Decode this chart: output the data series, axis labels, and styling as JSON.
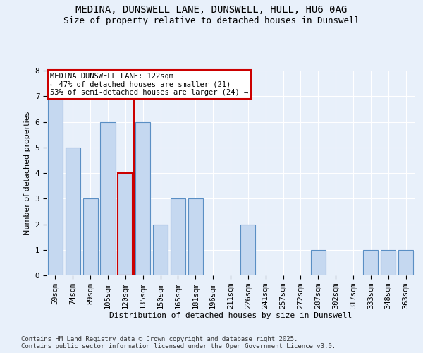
{
  "title": "MEDINA, DUNSWELL LANE, DUNSWELL, HULL, HU6 0AG",
  "subtitle": "Size of property relative to detached houses in Dunswell",
  "xlabel": "Distribution of detached houses by size in Dunswell",
  "ylabel": "Number of detached properties",
  "categories": [
    "59sqm",
    "74sqm",
    "89sqm",
    "105sqm",
    "120sqm",
    "135sqm",
    "150sqm",
    "165sqm",
    "181sqm",
    "196sqm",
    "211sqm",
    "226sqm",
    "241sqm",
    "257sqm",
    "272sqm",
    "287sqm",
    "302sqm",
    "317sqm",
    "333sqm",
    "348sqm",
    "363sqm"
  ],
  "values": [
    7,
    5,
    3,
    6,
    4,
    6,
    2,
    3,
    3,
    0,
    0,
    2,
    0,
    0,
    0,
    1,
    0,
    0,
    1,
    1,
    1
  ],
  "bar_color": "#c5d8f0",
  "bar_edge_color": "#5a8fc4",
  "highlight_bar_index": 4,
  "red_line_after_index": 4,
  "annotation_text": "MEDINA DUNSWELL LANE: 122sqm\n← 47% of detached houses are smaller (21)\n53% of semi-detached houses are larger (24) →",
  "annotation_box_color": "#ffffff",
  "annotation_box_edge_color": "#cc0000",
  "ylim": [
    0,
    8
  ],
  "yticks": [
    0,
    1,
    2,
    3,
    4,
    5,
    6,
    7,
    8
  ],
  "footer_text": "Contains HM Land Registry data © Crown copyright and database right 2025.\nContains public sector information licensed under the Open Government Licence v3.0.",
  "background_color": "#e8f0fa",
  "plot_bg_color": "#e8f0fa",
  "title_fontsize": 10,
  "subtitle_fontsize": 9,
  "axis_label_fontsize": 8,
  "tick_fontsize": 7.5,
  "annotation_fontsize": 7.5,
  "footer_fontsize": 6.5
}
